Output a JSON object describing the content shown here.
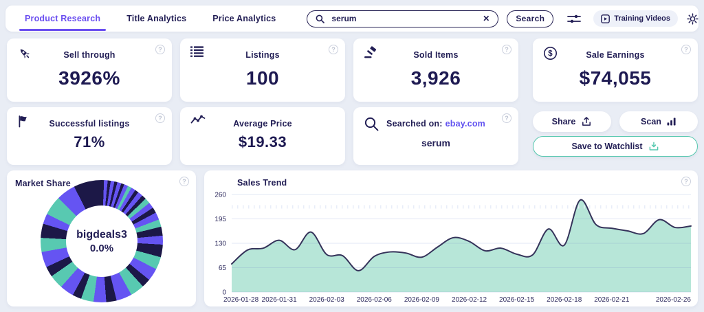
{
  "colors": {
    "background": "#e9edf5",
    "navy_text": "#221e55",
    "accent_purple": "#6a4ef0",
    "accent_teal": "#56c8af"
  },
  "ui": {
    "help_glyph": "?",
    "clear_glyph": "✕"
  },
  "header": {
    "tabs": [
      {
        "label": "Product Research",
        "active": true
      },
      {
        "label": "Title Analytics",
        "active": false
      },
      {
        "label": "Price Analytics",
        "active": false
      }
    ],
    "search_value": "serum",
    "search_button_label": "Search",
    "training_videos_label": "Training Videos"
  },
  "stat_cards": [
    {
      "icon": "rocket-icon",
      "title": "Sell through",
      "value": "3926%"
    },
    {
      "icon": "list-icon",
      "title": "Listings",
      "value": "100"
    },
    {
      "icon": "gavel-icon",
      "title": "Sold Items",
      "value": "3,926"
    },
    {
      "icon": "dollar-icon",
      "title": "Sale Earnings",
      "value": "$74,055"
    }
  ],
  "secondary_cards": [
    {
      "icon": "flag-icon",
      "title": "Successful listings",
      "value": "71%"
    },
    {
      "icon": "trend-icon",
      "title": "Average Price",
      "value": "$19.33"
    },
    {
      "icon": "search-icon",
      "title": "Searched on:",
      "site": "ebay.com",
      "value": "serum"
    }
  ],
  "action_buttons": {
    "share": "Share",
    "scan": "Scan",
    "save_to_watchlist": "Save to Watchlist"
  },
  "market_share": {
    "title": "Market Share",
    "center_label": "bigdeals3",
    "center_value": "0.0%",
    "palette": {
      "purple": "#6554f2",
      "navy": "#1c1847",
      "teal": "#58c9b1"
    },
    "segments": [
      [
        "navy",
        0.6
      ],
      [
        "purple",
        1
      ],
      [
        "navy",
        0.8
      ],
      [
        "purple",
        1
      ],
      [
        "navy",
        0.8
      ],
      [
        "purple",
        1.1
      ],
      [
        "navy",
        0.8
      ],
      [
        "purple",
        1.1
      ],
      [
        "teal",
        1
      ],
      [
        "purple",
        1.2
      ],
      [
        "navy",
        1
      ],
      [
        "purple",
        1.4
      ],
      [
        "navy",
        1.2
      ],
      [
        "teal",
        1.5
      ],
      [
        "purple",
        1.6
      ],
      [
        "navy",
        1.5
      ],
      [
        "purple",
        2
      ],
      [
        "teal",
        2
      ],
      [
        "navy",
        2.4
      ],
      [
        "purple",
        2.4
      ],
      [
        "navy",
        3.4
      ],
      [
        "teal",
        3.4
      ],
      [
        "purple",
        3.4
      ],
      [
        "navy",
        2.4
      ],
      [
        "teal",
        3.8
      ],
      [
        "purple",
        4.2
      ],
      [
        "navy",
        2.8
      ],
      [
        "purple",
        3.4
      ],
      [
        "teal",
        3.4
      ],
      [
        "navy",
        2.4
      ],
      [
        "purple",
        3.8
      ],
      [
        "teal",
        3.8
      ],
      [
        "navy",
        2.8
      ],
      [
        "purple",
        4.2
      ],
      [
        "teal",
        3.8
      ],
      [
        "navy",
        3.8
      ],
      [
        "purple",
        2.8
      ],
      [
        "teal",
        5.2
      ],
      [
        "purple",
        5.2
      ],
      [
        "navy",
        7.6
      ]
    ]
  },
  "chart_data": {
    "type": "area",
    "title": "Sales Trend",
    "x_tick_labels": [
      "2026-01-28",
      "2026-01-31",
      "2026-02-03",
      "2026-02-06",
      "2026-02-09",
      "2026-02-12",
      "2026-02-15",
      "2026-02-18",
      "2026-02-21",
      "2026-02-26"
    ],
    "x_tick_day_offsets": [
      0,
      3,
      6,
      9,
      12,
      15,
      18,
      21,
      24,
      29
    ],
    "y_ticks": [
      0,
      65,
      130,
      195,
      260
    ],
    "ylim": [
      0,
      260
    ],
    "grid": true,
    "legend": "none",
    "series": [
      {
        "name": "Sales",
        "start_date": "2026-01-28",
        "values": [
          75,
          112,
          117,
          138,
          113,
          160,
          100,
          97,
          57,
          95,
          107,
          104,
          93,
          120,
          145,
          135,
          110,
          117,
          101,
          99,
          168,
          125,
          245,
          180,
          170,
          163,
          156,
          193,
          172,
          176
        ]
      }
    ],
    "line_color": "#35335a",
    "fill_color": "#b7e6d8",
    "grid_color": "#dfe6f3",
    "tick_label_color": "#2e2b5e"
  }
}
